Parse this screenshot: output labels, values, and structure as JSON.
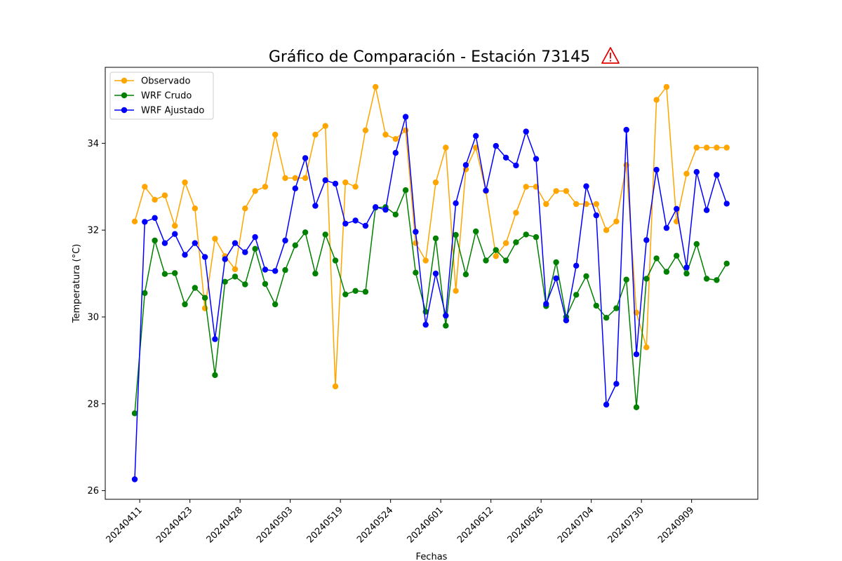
{
  "chart_data": {
    "type": "line",
    "title": "Gráfico de Comparación - Estación 73145",
    "title_icon": "warning-icon",
    "xlabel": "Fechas",
    "ylabel": "Temperatura (°C)",
    "ylim": [
      25.8,
      35.75
    ],
    "yticks": [
      26,
      28,
      30,
      32,
      34
    ],
    "grid": false,
    "legend_position": "top-left",
    "xtick_labels": [
      "20240411",
      "20240423",
      "20240428",
      "20240503",
      "20240519",
      "20240524",
      "20240601",
      "20240612",
      "20240626",
      "20240704",
      "20240730",
      "20240909"
    ],
    "xtick_positions": [
      0.5,
      5.5,
      10.5,
      15.5,
      20.5,
      25.5,
      30.5,
      35.5,
      40.5,
      45.5,
      50.5,
      55.5
    ],
    "series": [
      {
        "name": "Observado",
        "color": "#ffa500",
        "values": [
          32.2,
          33.0,
          32.7,
          32.8,
          32.1,
          33.1,
          32.5,
          30.2,
          31.8,
          31.4,
          31.1,
          32.5,
          32.9,
          33.0,
          34.2,
          33.2,
          33.2,
          33.2,
          34.2,
          34.4,
          28.4,
          33.1,
          33.0,
          34.3,
          35.3,
          34.2,
          34.1,
          34.3,
          31.7,
          31.3,
          33.1,
          33.9,
          30.6,
          33.4,
          33.9,
          32.9,
          31.4,
          31.7,
          32.4,
          33.0,
          33.0,
          32.6,
          32.9,
          32.9,
          32.6,
          32.6,
          32.6,
          32.0,
          32.2,
          33.5,
          30.1,
          29.3,
          35.0,
          35.3,
          32.2,
          33.3,
          33.9,
          33.9,
          33.9,
          33.9
        ]
      },
      {
        "name": "WRF Crudo",
        "color": "#008000",
        "values": [
          27.78,
          30.55,
          31.76,
          30.99,
          31.01,
          30.29,
          30.67,
          30.44,
          28.66,
          30.81,
          30.93,
          30.75,
          31.57,
          30.76,
          30.29,
          31.08,
          31.65,
          31.95,
          31.0,
          31.9,
          31.3,
          30.52,
          30.6,
          30.58,
          32.52,
          32.53,
          32.36,
          32.92,
          31.02,
          30.12,
          31.81,
          29.8,
          31.89,
          30.98,
          31.97,
          31.3,
          31.54,
          31.3,
          31.72,
          31.9,
          31.84,
          30.25,
          31.26,
          30.0,
          30.51,
          30.94,
          30.26,
          29.98,
          30.2,
          30.86,
          27.92,
          30.88,
          31.35,
          31.04,
          31.41,
          31.0,
          31.68,
          30.88,
          30.85,
          31.23
        ]
      },
      {
        "name": "WRF Ajustado",
        "color": "#0000ff",
        "values": [
          26.26,
          32.19,
          32.28,
          31.7,
          31.91,
          31.43,
          31.7,
          31.38,
          29.49,
          31.33,
          31.7,
          31.49,
          31.84,
          31.09,
          31.06,
          31.76,
          32.96,
          33.66,
          32.56,
          33.15,
          33.07,
          32.15,
          32.22,
          32.1,
          32.53,
          32.47,
          33.78,
          34.61,
          31.96,
          29.82,
          31.0,
          30.03,
          32.62,
          33.5,
          34.17,
          32.91,
          33.94,
          33.67,
          33.49,
          34.27,
          33.64,
          30.3,
          30.89,
          29.92,
          31.18,
          33.01,
          32.34,
          27.98,
          28.46,
          34.31,
          29.14,
          31.77,
          33.39,
          32.05,
          32.49,
          31.14,
          33.34,
          32.46,
          33.27,
          32.61
        ]
      }
    ]
  }
}
